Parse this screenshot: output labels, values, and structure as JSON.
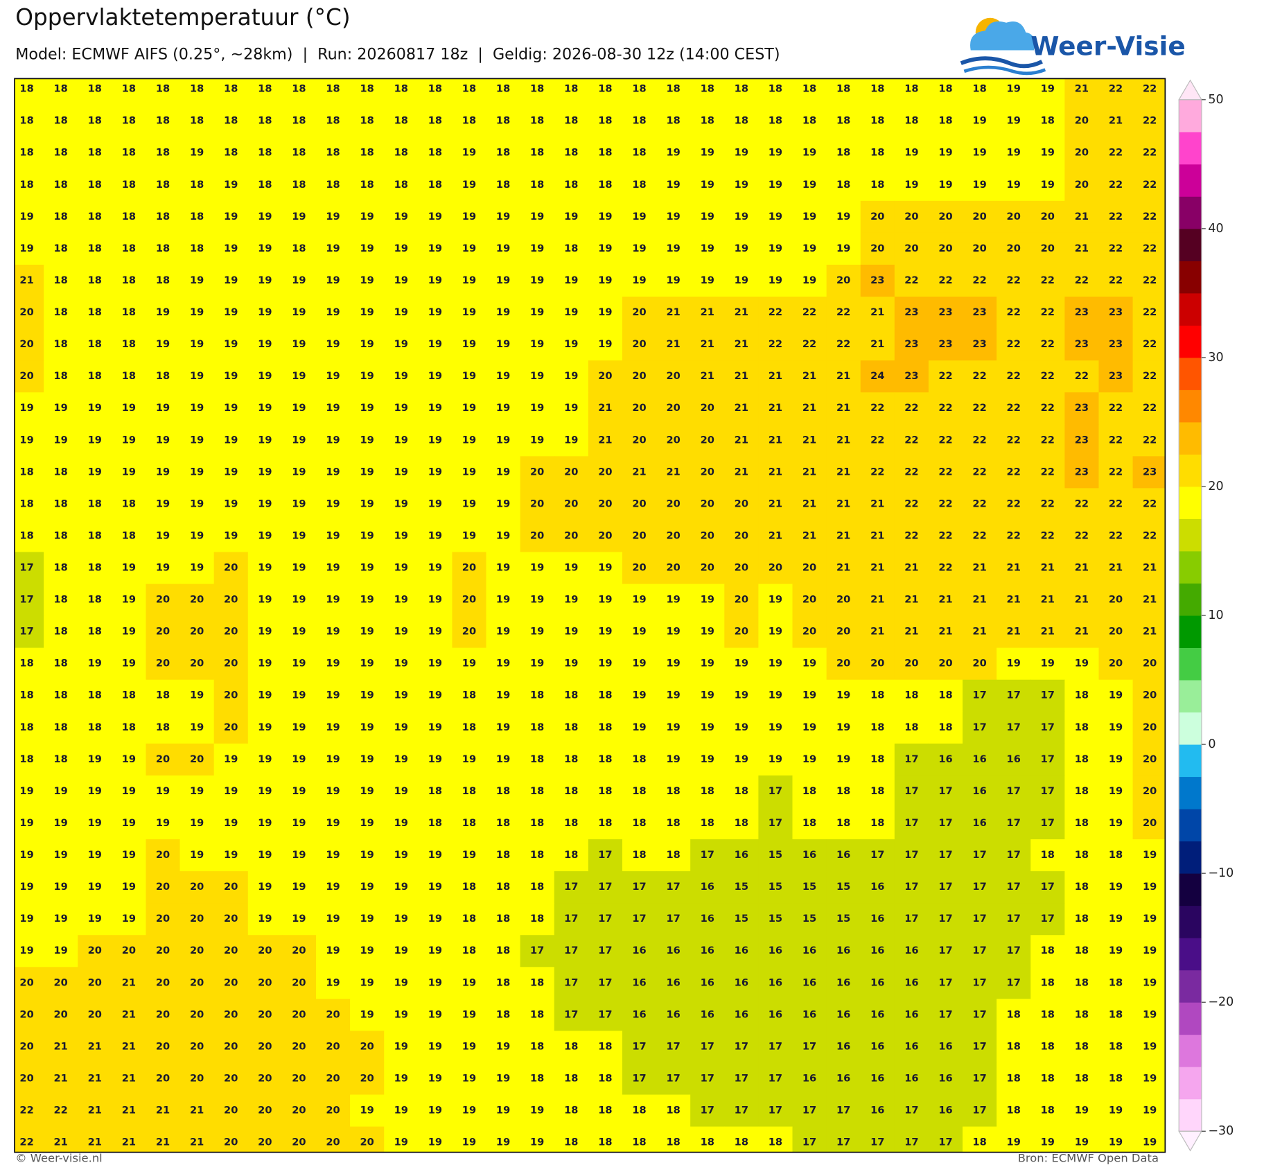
{
  "header": {
    "title": "Oppervlaktetemperatuur (°C)",
    "subtitle": "Model: ECMWF AIFS (0.25°, ~28km)  |  Run: 20260817 18z  |  Geldig: 2026-08-30 12z (14:00 CEST)"
  },
  "logo": {
    "text": "Weer-Visie"
  },
  "grid": {
    "rows": [
      [
        18,
        18,
        18,
        18,
        18,
        18,
        18,
        18,
        18,
        18,
        18,
        18,
        18,
        18,
        18,
        18,
        18,
        18,
        18,
        18,
        18,
        18,
        18,
        18,
        18,
        18,
        18,
        18,
        18,
        19,
        19,
        21,
        22,
        22
      ],
      [
        18,
        18,
        18,
        18,
        18,
        18,
        18,
        18,
        18,
        18,
        18,
        18,
        18,
        18,
        18,
        18,
        18,
        18,
        18,
        18,
        18,
        18,
        18,
        18,
        18,
        18,
        18,
        18,
        19,
        19,
        18,
        20,
        21,
        22
      ],
      [
        18,
        18,
        18,
        18,
        18,
        19,
        18,
        18,
        18,
        18,
        18,
        18,
        18,
        19,
        18,
        18,
        18,
        18,
        18,
        19,
        19,
        19,
        19,
        19,
        18,
        18,
        19,
        19,
        19,
        19,
        19,
        20,
        22,
        22
      ],
      [
        18,
        18,
        18,
        18,
        18,
        18,
        19,
        18,
        18,
        18,
        18,
        18,
        18,
        19,
        18,
        18,
        18,
        18,
        18,
        19,
        19,
        19,
        19,
        19,
        18,
        18,
        19,
        19,
        19,
        19,
        19,
        20,
        22,
        22
      ],
      [
        19,
        18,
        18,
        18,
        18,
        18,
        19,
        19,
        19,
        19,
        19,
        19,
        19,
        19,
        19,
        19,
        19,
        19,
        19,
        19,
        19,
        19,
        19,
        19,
        19,
        20,
        20,
        20,
        20,
        20,
        20,
        21,
        22,
        22
      ],
      [
        19,
        18,
        18,
        18,
        18,
        18,
        19,
        19,
        18,
        19,
        19,
        19,
        19,
        19,
        19,
        19,
        18,
        19,
        19,
        19,
        19,
        19,
        19,
        19,
        19,
        20,
        20,
        20,
        20,
        20,
        20,
        21,
        22,
        22
      ],
      [
        21,
        18,
        18,
        18,
        18,
        19,
        19,
        19,
        19,
        19,
        19,
        19,
        19,
        19,
        19,
        19,
        19,
        19,
        19,
        19,
        19,
        19,
        19,
        19,
        20,
        23,
        22,
        22,
        22,
        22,
        22,
        22,
        22,
        22
      ],
      [
        20,
        18,
        18,
        18,
        19,
        19,
        19,
        19,
        19,
        19,
        19,
        19,
        19,
        19,
        19,
        19,
        19,
        19,
        20,
        21,
        21,
        21,
        22,
        22,
        22,
        21,
        23,
        23,
        23,
        22,
        22,
        23,
        23,
        22
      ],
      [
        20,
        18,
        18,
        18,
        19,
        19,
        19,
        19,
        19,
        19,
        19,
        19,
        19,
        19,
        19,
        19,
        19,
        19,
        20,
        21,
        21,
        21,
        22,
        22,
        22,
        21,
        23,
        23,
        23,
        22,
        22,
        23,
        23,
        22
      ],
      [
        20,
        18,
        18,
        18,
        18,
        19,
        19,
        19,
        19,
        19,
        19,
        19,
        19,
        19,
        19,
        19,
        19,
        20,
        20,
        20,
        21,
        21,
        21,
        21,
        21,
        24,
        23,
        22,
        22,
        22,
        22,
        22,
        23,
        22
      ],
      [
        19,
        19,
        19,
        19,
        19,
        19,
        19,
        19,
        19,
        19,
        19,
        19,
        19,
        19,
        19,
        19,
        19,
        21,
        20,
        20,
        20,
        21,
        21,
        21,
        21,
        22,
        22,
        22,
        22,
        22,
        22,
        23,
        22,
        22
      ],
      [
        19,
        19,
        19,
        19,
        19,
        19,
        19,
        19,
        19,
        19,
        19,
        19,
        19,
        19,
        19,
        19,
        19,
        21,
        20,
        20,
        20,
        21,
        21,
        21,
        21,
        22,
        22,
        22,
        22,
        22,
        22,
        23,
        22,
        22
      ],
      [
        18,
        18,
        19,
        19,
        19,
        19,
        19,
        19,
        19,
        19,
        19,
        19,
        19,
        19,
        19,
        20,
        20,
        20,
        21,
        21,
        20,
        21,
        21,
        21,
        21,
        22,
        22,
        22,
        22,
        22,
        22,
        23,
        22,
        23
      ],
      [
        18,
        18,
        18,
        18,
        19,
        19,
        19,
        19,
        19,
        19,
        19,
        19,
        19,
        19,
        19,
        20,
        20,
        20,
        20,
        20,
        20,
        20,
        21,
        21,
        21,
        21,
        22,
        22,
        22,
        22,
        22,
        22,
        22,
        22
      ],
      [
        18,
        18,
        18,
        18,
        19,
        19,
        19,
        19,
        19,
        19,
        19,
        19,
        19,
        19,
        19,
        20,
        20,
        20,
        20,
        20,
        20,
        20,
        21,
        21,
        21,
        21,
        22,
        22,
        22,
        22,
        22,
        22,
        22,
        22
      ],
      [
        17,
        18,
        18,
        19,
        19,
        19,
        20,
        19,
        19,
        19,
        19,
        19,
        19,
        20,
        19,
        19,
        19,
        19,
        20,
        20,
        20,
        20,
        20,
        20,
        21,
        21,
        21,
        22,
        21,
        21,
        21,
        21,
        21,
        21
      ],
      [
        17,
        18,
        18,
        19,
        20,
        20,
        20,
        19,
        19,
        19,
        19,
        19,
        19,
        20,
        19,
        19,
        19,
        19,
        19,
        19,
        19,
        20,
        19,
        20,
        20,
        21,
        21,
        21,
        21,
        21,
        21,
        21,
        20,
        21
      ],
      [
        17,
        18,
        18,
        19,
        20,
        20,
        20,
        19,
        19,
        19,
        19,
        19,
        19,
        20,
        19,
        19,
        19,
        19,
        19,
        19,
        19,
        20,
        19,
        20,
        20,
        21,
        21,
        21,
        21,
        21,
        21,
        21,
        20,
        21
      ],
      [
        18,
        18,
        19,
        19,
        20,
        20,
        20,
        19,
        19,
        19,
        19,
        19,
        19,
        19,
        19,
        19,
        19,
        19,
        19,
        19,
        19,
        19,
        19,
        19,
        20,
        20,
        20,
        20,
        20,
        19,
        19,
        19,
        20,
        20
      ],
      [
        18,
        18,
        18,
        18,
        18,
        19,
        20,
        19,
        19,
        19,
        19,
        19,
        19,
        18,
        19,
        18,
        18,
        18,
        19,
        19,
        19,
        19,
        19,
        19,
        19,
        18,
        18,
        18,
        17,
        17,
        17,
        18,
        19,
        20
      ],
      [
        18,
        18,
        18,
        18,
        18,
        19,
        20,
        19,
        19,
        19,
        19,
        19,
        19,
        18,
        19,
        18,
        18,
        18,
        19,
        19,
        19,
        19,
        19,
        19,
        19,
        18,
        18,
        18,
        17,
        17,
        17,
        18,
        19,
        20
      ],
      [
        18,
        18,
        19,
        19,
        20,
        20,
        19,
        19,
        19,
        19,
        19,
        19,
        19,
        19,
        19,
        18,
        18,
        18,
        18,
        19,
        19,
        19,
        19,
        19,
        19,
        18,
        17,
        16,
        16,
        16,
        17,
        18,
        19,
        20
      ],
      [
        19,
        19,
        19,
        19,
        19,
        19,
        19,
        19,
        19,
        19,
        19,
        19,
        18,
        18,
        18,
        18,
        18,
        18,
        18,
        18,
        18,
        18,
        17,
        18,
        18,
        18,
        17,
        17,
        16,
        17,
        17,
        18,
        19,
        20
      ],
      [
        19,
        19,
        19,
        19,
        19,
        19,
        19,
        19,
        19,
        19,
        19,
        19,
        18,
        18,
        18,
        18,
        18,
        18,
        18,
        18,
        18,
        18,
        17,
        18,
        18,
        18,
        17,
        17,
        16,
        17,
        17,
        18,
        19,
        20
      ],
      [
        19,
        19,
        19,
        19,
        20,
        19,
        19,
        19,
        19,
        19,
        19,
        19,
        19,
        19,
        18,
        18,
        18,
        17,
        18,
        18,
        17,
        16,
        15,
        16,
        16,
        17,
        17,
        17,
        17,
        17,
        18,
        18,
        18,
        19
      ],
      [
        19,
        19,
        19,
        19,
        20,
        20,
        20,
        19,
        19,
        19,
        19,
        19,
        19,
        18,
        18,
        18,
        17,
        17,
        17,
        17,
        16,
        15,
        15,
        15,
        15,
        16,
        17,
        17,
        17,
        17,
        17,
        18,
        19,
        19
      ],
      [
        19,
        19,
        19,
        19,
        20,
        20,
        20,
        19,
        19,
        19,
        19,
        19,
        19,
        18,
        18,
        18,
        17,
        17,
        17,
        17,
        16,
        15,
        15,
        15,
        15,
        16,
        17,
        17,
        17,
        17,
        17,
        18,
        19,
        19
      ],
      [
        19,
        19,
        20,
        20,
        20,
        20,
        20,
        20,
        20,
        19,
        19,
        19,
        19,
        18,
        18,
        17,
        17,
        17,
        16,
        16,
        16,
        16,
        16,
        16,
        16,
        16,
        16,
        17,
        17,
        17,
        18,
        18,
        19,
        19
      ],
      [
        20,
        20,
        20,
        21,
        20,
        20,
        20,
        20,
        20,
        19,
        19,
        19,
        19,
        19,
        18,
        18,
        17,
        17,
        16,
        16,
        16,
        16,
        16,
        16,
        16,
        16,
        16,
        17,
        17,
        17,
        18,
        18,
        18,
        19
      ],
      [
        20,
        20,
        20,
        21,
        20,
        20,
        20,
        20,
        20,
        20,
        19,
        19,
        19,
        19,
        18,
        18,
        17,
        17,
        16,
        16,
        16,
        16,
        16,
        16,
        16,
        16,
        16,
        17,
        17,
        18,
        18,
        18,
        18,
        19
      ],
      [
        20,
        21,
        21,
        21,
        20,
        20,
        20,
        20,
        20,
        20,
        20,
        19,
        19,
        19,
        19,
        18,
        18,
        18,
        17,
        17,
        17,
        17,
        17,
        17,
        16,
        16,
        16,
        16,
        17,
        18,
        18,
        18,
        18,
        19
      ],
      [
        20,
        21,
        21,
        21,
        20,
        20,
        20,
        20,
        20,
        20,
        20,
        19,
        19,
        19,
        19,
        18,
        18,
        18,
        17,
        17,
        17,
        17,
        17,
        16,
        16,
        16,
        16,
        16,
        17,
        18,
        18,
        18,
        18,
        19
      ],
      [
        22,
        22,
        21,
        21,
        21,
        21,
        20,
        20,
        20,
        20,
        19,
        19,
        19,
        19,
        19,
        19,
        18,
        18,
        18,
        18,
        17,
        17,
        17,
        17,
        17,
        16,
        17,
        16,
        17,
        18,
        18,
        19,
        19,
        19
      ],
      [
        22,
        21,
        21,
        21,
        21,
        21,
        20,
        20,
        20,
        20,
        20,
        19,
        19,
        19,
        19,
        19,
        18,
        18,
        18,
        18,
        18,
        18,
        18,
        17,
        17,
        17,
        17,
        17,
        18,
        19,
        19,
        19,
        19,
        19
      ]
    ]
  },
  "colorbar": {
    "lim": [
      -30,
      50
    ],
    "ticks": [
      {
        "value": -30,
        "label": "−30"
      },
      {
        "value": -20,
        "label": "−20"
      },
      {
        "value": -10,
        "label": "−10"
      },
      0,
      10,
      20,
      30,
      40,
      50
    ],
    "colors": [
      "#ffd6fb",
      "#f5a6ee",
      "#dd77dd",
      "#b048c0",
      "#7a2aa0",
      "#4a0e88",
      "#2a0560",
      "#140040",
      "#001e7a",
      "#0046a8",
      "#0078cc",
      "#22bbf0",
      "#ccffdd",
      "#99ee99",
      "#44cc44",
      "#009900",
      "#44aa00",
      "#88cc00",
      "#ccdd00",
      "#ffff00",
      "#ffdd00",
      "#ffbb00",
      "#ff8800",
      "#ff5500",
      "#ff0000",
      "#cc0000",
      "#880000",
      "#550022",
      "#880066",
      "#cc0099",
      "#ff44cc",
      "#ffaadd"
    ],
    "under_color": "#fff0ff",
    "over_color": "#ffe6f6"
  },
  "footer": {
    "left": "© Weer-visie.nl",
    "right": "Bron: ECMWF Open Data"
  }
}
